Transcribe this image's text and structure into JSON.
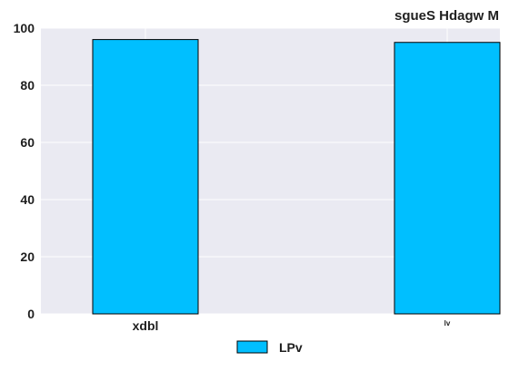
{
  "chart_data": {
    "type": "bar",
    "title": "sgueS Hdagw M",
    "xlabel": "",
    "ylabel": "",
    "categories": [
      "xdbl",
      "lv"
    ],
    "series": [
      {
        "name": "LPv",
        "values": [
          96,
          95
        ],
        "color": "#00bfff"
      }
    ],
    "ylim": [
      0,
      100
    ],
    "yticks": [
      0,
      20,
      40,
      60,
      80,
      100
    ],
    "grid": true,
    "legend_position": "bottom-center",
    "colors": {
      "plot_background": "#eaeaf2",
      "grid": "#ffffff",
      "bar_edge": "#000000"
    }
  }
}
